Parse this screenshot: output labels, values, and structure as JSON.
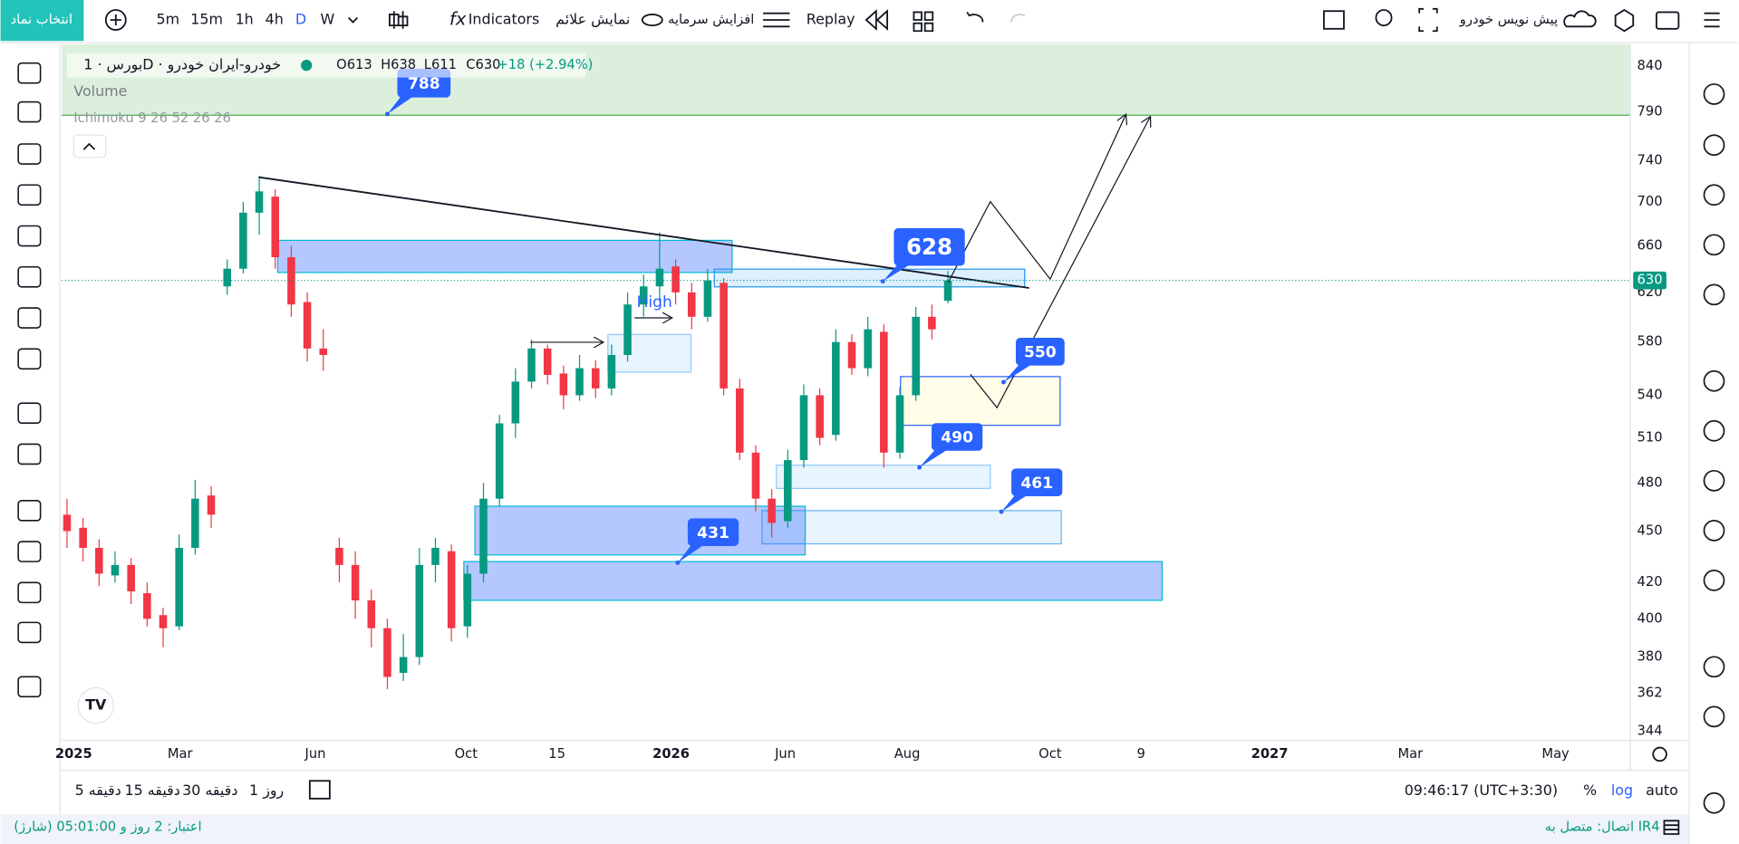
{
  "toolbar": {
    "symbol_button": "انتخاب نماد",
    "intervals": [
      "5m",
      "15m",
      "1h",
      "4h",
      "D",
      "W"
    ],
    "indicators": "Indicators",
    "show_signals": "نمایش علائم",
    "capital": "افزایش سرمایه",
    "replay": "Replay",
    "draft": "پیش نویس خودرو"
  },
  "legend": {
    "symbol": "بورس · 1D · خودرو-ایران خودرو",
    "ohlc": [
      "O613",
      "H638",
      "L611",
      "C630"
    ],
    "change": "+18 (+2.94%)",
    "volume": "Volume",
    "ichimoku": "Ichimoku 9 26 52 26 26"
  },
  "chart_data": {
    "type": "candlestick",
    "log_scale": true,
    "ylim": [
      340,
      865
    ],
    "yticks": [
      840,
      790,
      740,
      700,
      660,
      620,
      580,
      540,
      510,
      480,
      450,
      420,
      400,
      380,
      362,
      344
    ],
    "x_labels": [
      "2025",
      "Mar",
      "Jun",
      "Oct",
      "15",
      "2026",
      "Jun",
      "Aug",
      "Oct",
      "9",
      "2027",
      "Mar",
      "May"
    ],
    "last_price": 630,
    "up_color": "#089981",
    "down_color": "#f23645",
    "callouts": [
      "788",
      "628",
      "550",
      "490",
      "461",
      "431"
    ],
    "high_label": "High",
    "candles": [
      {
        "o": 460,
        "h": 470,
        "l": 440,
        "c": 450
      },
      {
        "o": 452,
        "h": 458,
        "l": 432,
        "c": 440
      },
      {
        "o": 440,
        "h": 445,
        "l": 418,
        "c": 425
      },
      {
        "o": 424,
        "h": 438,
        "l": 420,
        "c": 430
      },
      {
        "o": 430,
        "h": 434,
        "l": 408,
        "c": 415
      },
      {
        "o": 414,
        "h": 420,
        "l": 396,
        "c": 400
      },
      {
        "o": 402,
        "h": 406,
        "l": 385,
        "c": 395
      },
      {
        "o": 396,
        "h": 448,
        "l": 394,
        "c": 440
      },
      {
        "o": 440,
        "h": 482,
        "l": 436,
        "c": 470
      },
      {
        "o": 472,
        "h": 478,
        "l": 452,
        "c": 460
      },
      {
        "o": 625,
        "h": 648,
        "l": 618,
        "c": 640
      },
      {
        "o": 640,
        "h": 700,
        "l": 636,
        "c": 690
      },
      {
        "o": 690,
        "h": 725,
        "l": 670,
        "c": 710
      },
      {
        "o": 705,
        "h": 712,
        "l": 640,
        "c": 650
      },
      {
        "o": 650,
        "h": 660,
        "l": 600,
        "c": 610
      },
      {
        "o": 612,
        "h": 620,
        "l": 565,
        "c": 575
      },
      {
        "o": 575,
        "h": 590,
        "l": 558,
        "c": 570
      },
      {
        "o": 440,
        "h": 446,
        "l": 420,
        "c": 430
      },
      {
        "o": 430,
        "h": 438,
        "l": 400,
        "c": 410
      },
      {
        "o": 410,
        "h": 416,
        "l": 385,
        "c": 395
      },
      {
        "o": 395,
        "h": 400,
        "l": 364,
        "c": 370
      },
      {
        "o": 372,
        "h": 392,
        "l": 368,
        "c": 380
      },
      {
        "o": 380,
        "h": 440,
        "l": 376,
        "c": 430
      },
      {
        "o": 430,
        "h": 446,
        "l": 420,
        "c": 440
      },
      {
        "o": 438,
        "h": 442,
        "l": 388,
        "c": 395
      },
      {
        "o": 396,
        "h": 430,
        "l": 390,
        "c": 425
      },
      {
        "o": 425,
        "h": 480,
        "l": 420,
        "c": 470
      },
      {
        "o": 470,
        "h": 526,
        "l": 465,
        "c": 520
      },
      {
        "o": 520,
        "h": 560,
        "l": 510,
        "c": 550
      },
      {
        "o": 550,
        "h": 582,
        "l": 545,
        "c": 575
      },
      {
        "o": 575,
        "h": 578,
        "l": 548,
        "c": 555
      },
      {
        "o": 556,
        "h": 562,
        "l": 530,
        "c": 540
      },
      {
        "o": 540,
        "h": 570,
        "l": 536,
        "c": 560
      },
      {
        "o": 560,
        "h": 566,
        "l": 538,
        "c": 545
      },
      {
        "o": 545,
        "h": 578,
        "l": 540,
        "c": 570
      },
      {
        "o": 570,
        "h": 620,
        "l": 565,
        "c": 610
      },
      {
        "o": 610,
        "h": 635,
        "l": 600,
        "c": 625
      },
      {
        "o": 625,
        "h": 672,
        "l": 612,
        "c": 640
      },
      {
        "o": 642,
        "h": 648,
        "l": 610,
        "c": 620
      },
      {
        "o": 620,
        "h": 628,
        "l": 590,
        "c": 600
      },
      {
        "o": 600,
        "h": 640,
        "l": 596,
        "c": 630
      },
      {
        "o": 628,
        "h": 632,
        "l": 540,
        "c": 545
      },
      {
        "o": 545,
        "h": 552,
        "l": 495,
        "c": 500
      },
      {
        "o": 500,
        "h": 505,
        "l": 462,
        "c": 470
      },
      {
        "o": 470,
        "h": 476,
        "l": 446,
        "c": 455
      },
      {
        "o": 456,
        "h": 502,
        "l": 452,
        "c": 495
      },
      {
        "o": 495,
        "h": 548,
        "l": 490,
        "c": 540
      },
      {
        "o": 540,
        "h": 545,
        "l": 505,
        "c": 510
      },
      {
        "o": 512,
        "h": 590,
        "l": 508,
        "c": 580
      },
      {
        "o": 580,
        "h": 586,
        "l": 555,
        "c": 560
      },
      {
        "o": 560,
        "h": 600,
        "l": 554,
        "c": 590
      },
      {
        "o": 588,
        "h": 594,
        "l": 490,
        "c": 500
      },
      {
        "o": 500,
        "h": 546,
        "l": 496,
        "c": 540
      },
      {
        "o": 540,
        "h": 608,
        "l": 536,
        "c": 600
      },
      {
        "o": 600,
        "h": 610,
        "l": 582,
        "c": 590
      },
      {
        "o": 613,
        "h": 638,
        "l": 611,
        "c": 630
      }
    ]
  },
  "bottom_bar": {
    "ranges": [
      "5 دقیقه",
      "15 دقیقه",
      "30 دقیقه",
      "1 روز"
    ],
    "clock": "09:46:17 (UTC+3:30)",
    "percent": "%",
    "log": "log",
    "auto": "auto"
  },
  "status": {
    "credit": "اعتبار: 2 روز و 05:01:00 (شارژ)",
    "connection": "اتصال: متصل به IR4"
  }
}
